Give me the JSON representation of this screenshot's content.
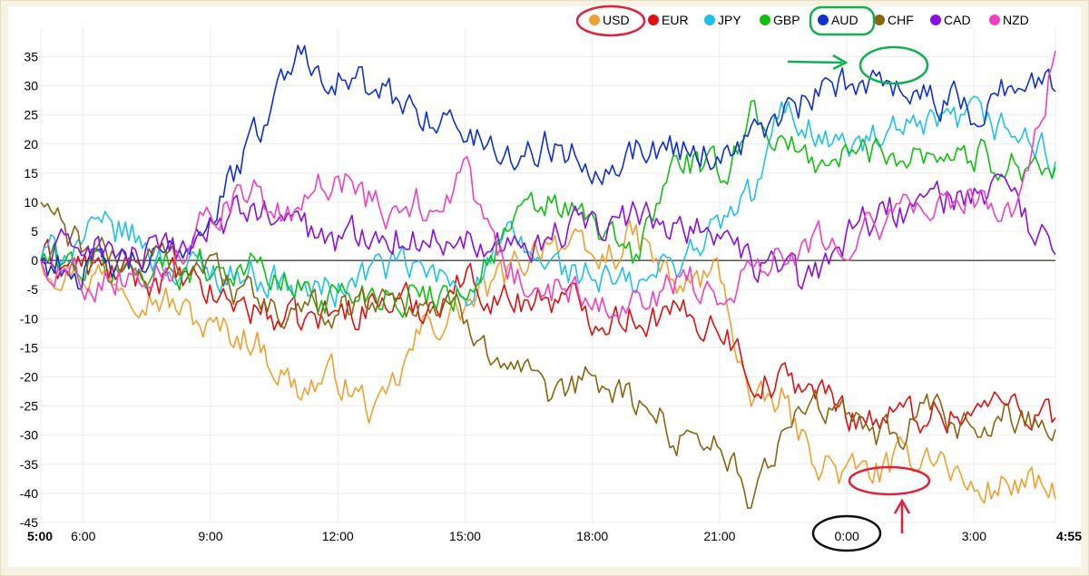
{
  "chart_data": {
    "type": "line",
    "title": "",
    "xlabel": "",
    "ylabel": "",
    "grid": true,
    "legend_position": "top-right",
    "ylim": [
      -45,
      37
    ],
    "xlim_hours_from_start": [
      0,
      23.917
    ],
    "y_ticks": [
      "35",
      "30",
      "25",
      "20",
      "15",
      "10",
      "5",
      "0",
      "-5",
      "-10",
      "-15",
      "-20",
      "-25",
      "-30",
      "-35",
      "-40",
      "-45"
    ],
    "x_ticks": [
      {
        "label": "5:00",
        "t": 0,
        "bold": true
      },
      {
        "label": "6:00",
        "t": 1,
        "bold": false
      },
      {
        "label": "9:00",
        "t": 4,
        "bold": false
      },
      {
        "label": "12:00",
        "t": 7,
        "bold": false
      },
      {
        "label": "15:00",
        "t": 10,
        "bold": false
      },
      {
        "label": "18:00",
        "t": 13,
        "bold": false
      },
      {
        "label": "21:00",
        "t": 16,
        "bold": false
      },
      {
        "label": "0:00",
        "t": 19,
        "bold": false
      },
      {
        "label": "3:00",
        "t": 22,
        "bold": false
      },
      {
        "label": "4:55",
        "t": 23.917,
        "bold": true
      }
    ],
    "series": [
      {
        "name": "USD",
        "color": "#f0a030",
        "t": [
          0,
          1,
          2,
          3,
          4,
          5,
          6,
          7,
          8,
          9,
          10,
          11,
          12,
          13,
          14,
          15,
          16,
          16.8,
          17.5,
          18,
          19,
          20,
          21,
          22,
          23,
          23.917
        ],
        "values": [
          0,
          -2,
          -3,
          -7,
          -12,
          -13,
          -22,
          -20,
          -27,
          -12,
          -8,
          -3,
          5,
          -1,
          4,
          -5,
          -2,
          -26,
          -24,
          -32,
          -37,
          -36,
          -32,
          -40,
          -38,
          -41
        ]
      },
      {
        "name": "EUR",
        "color": "#e01010",
        "t": [
          0,
          1,
          2,
          3,
          4,
          5,
          6,
          7,
          8,
          9,
          10,
          11,
          12,
          13,
          14,
          15,
          16,
          16.8,
          17.5,
          18,
          19,
          20,
          21,
          22,
          23,
          23.917
        ],
        "values": [
          0,
          -1,
          -3,
          -3,
          -6,
          -8,
          -11,
          -9,
          -7,
          -8,
          -3,
          -7,
          -6,
          -9,
          -9,
          -10,
          -10,
          -20,
          -21,
          -21,
          -26,
          -27,
          -26,
          -26,
          -24,
          -27
        ]
      },
      {
        "name": "JPY",
        "color": "#1fc1e8",
        "t": [
          0,
          1,
          2,
          3,
          4,
          5,
          6,
          7,
          8,
          9,
          10,
          11,
          12,
          13,
          14,
          15,
          16,
          16.8,
          17.5,
          18,
          19,
          20,
          21,
          22,
          23,
          23.917
        ],
        "values": [
          0,
          4,
          5,
          -1,
          -2,
          -2,
          -5,
          -5,
          -1,
          -2,
          -5,
          3,
          -1,
          -3,
          -5,
          0,
          6,
          11,
          26,
          24,
          19,
          21,
          22,
          24,
          22,
          17
        ]
      },
      {
        "name": "GBP",
        "color": "#10c010",
        "t": [
          0,
          1,
          2,
          3,
          4,
          5,
          6,
          7,
          8,
          9,
          10,
          11,
          12,
          13,
          14,
          15,
          16,
          16.8,
          17.5,
          18,
          19,
          20,
          21,
          22,
          23,
          23.917
        ],
        "values": [
          0,
          -1,
          -2,
          -1,
          -1,
          -1,
          -5,
          -6,
          -5,
          -6,
          -5,
          5,
          10,
          6,
          0,
          18,
          14,
          26,
          20,
          17,
          18,
          19,
          19,
          18,
          17,
          16
        ]
      },
      {
        "name": "AUD",
        "color": "#1030d0",
        "t": [
          0,
          1,
          2,
          3,
          4,
          5,
          6,
          7,
          8,
          9,
          10,
          11,
          12,
          13,
          14,
          15,
          16,
          16.8,
          17.5,
          18,
          19,
          20,
          21,
          22,
          23,
          23.917
        ],
        "values": [
          0,
          -2,
          -1,
          0,
          8,
          20,
          36,
          32,
          28,
          26,
          22,
          18,
          20,
          17,
          19,
          20,
          18,
          22,
          24,
          27,
          30,
          32,
          28,
          26,
          31,
          29
        ]
      },
      {
        "name": "CHF",
        "color": "#8a6410",
        "t": [
          0,
          1,
          2,
          3,
          4,
          5,
          6,
          7,
          8,
          9,
          10,
          11,
          12,
          13,
          14,
          15,
          16,
          16.8,
          17.5,
          18,
          19,
          20,
          21,
          22,
          23,
          23.917
        ],
        "values": [
          10,
          1,
          0,
          1,
          -1,
          -7,
          -10,
          -8,
          -6,
          -7,
          -10,
          -17,
          -26,
          -20,
          -24,
          -30,
          -30,
          -43,
          -28,
          -24,
          -28,
          -30,
          -27,
          -30,
          -26,
          -29
        ]
      },
      {
        "name": "CAD",
        "color": "#8a10e0",
        "t": [
          0,
          1,
          2,
          3,
          4,
          5,
          6,
          7,
          8,
          9,
          10,
          11,
          12,
          13,
          14,
          15,
          16,
          16.8,
          17.5,
          18,
          19,
          20,
          21,
          22,
          23,
          23.917
        ],
        "values": [
          0,
          3,
          1,
          0,
          6,
          9,
          6,
          3,
          6,
          3,
          5,
          3,
          4,
          6,
          7,
          7,
          5,
          -2,
          0,
          -5,
          5,
          8,
          10,
          12,
          9,
          1
        ]
      },
      {
        "name": "NZD",
        "color": "#f040c0",
        "t": [
          0,
          1,
          2,
          3,
          4,
          5,
          6,
          7,
          8,
          9,
          10,
          11,
          12,
          13,
          14,
          15,
          16,
          16.8,
          17.5,
          18,
          19,
          20,
          21,
          22,
          23,
          23.917
        ],
        "values": [
          0,
          -3,
          -2,
          -1,
          10,
          11,
          6,
          16,
          8,
          10,
          14,
          -2,
          -5,
          -5,
          -8,
          -3,
          -6,
          0,
          2,
          3,
          5,
          7,
          9,
          11,
          8,
          36
        ]
      }
    ]
  }
}
